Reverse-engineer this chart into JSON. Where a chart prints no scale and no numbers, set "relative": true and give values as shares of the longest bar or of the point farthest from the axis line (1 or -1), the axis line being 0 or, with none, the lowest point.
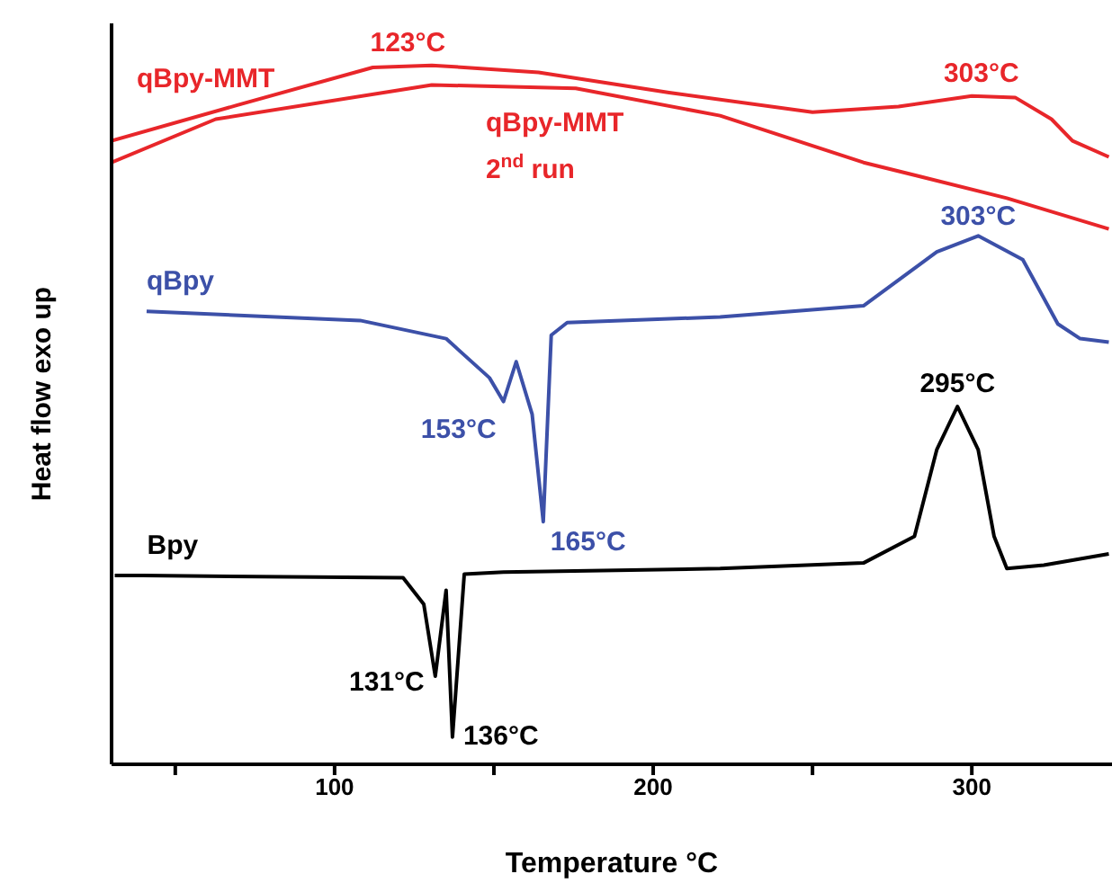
{
  "chart_data": {
    "type": "line",
    "relative": true,
    "xlabel": "Temperature °C",
    "ylabel": "Heat flow exo up",
    "xlim": [
      30,
      344
    ],
    "xticks": [
      {
        "value": 50,
        "label": null
      },
      100,
      {
        "value": 150,
        "label": null
      },
      200,
      {
        "value": 250,
        "label": null
      },
      300
    ],
    "series": [
      {
        "name": "qBpy-MMT",
        "color": "#e8262a",
        "x": [
          30,
          69.5,
          112,
          130.5,
          164,
          205,
          250,
          277,
          300,
          313.6,
          325,
          331.6,
          343
        ],
        "values": [
          0.892,
          0.943,
          0.997,
          1.0,
          0.99,
          0.961,
          0.933,
          0.941,
          0.956,
          0.954,
          0.923,
          0.892,
          0.869
        ]
      },
      {
        "name": "qBpy-MMT 2$^{nd}$ run",
        "color": "#e8262a",
        "x": [
          30,
          62.7,
          130.5,
          175.7,
          221,
          266,
          311,
          343
        ],
        "values": [
          0.861,
          0.923,
          0.972,
          0.967,
          0.928,
          0.861,
          0.81,
          0.766
        ]
      },
      {
        "name": "qBpy",
        "color": "#3c50a8",
        "x": [
          41,
          108,
          135,
          148.6,
          153,
          157,
          162,
          165.5,
          168,
          173,
          221,
          266,
          289,
          302,
          316,
          327,
          334,
          343
        ],
        "values": [
          0.648,
          0.635,
          0.609,
          0.553,
          0.519,
          0.576,
          0.501,
          0.347,
          0.614,
          0.632,
          0.64,
          0.656,
          0.733,
          0.756,
          0.722,
          0.63,
          0.609,
          0.604
        ]
      },
      {
        "name": "Bpy",
        "color": "#000000",
        "x": [
          31,
          40,
          121.5,
          128,
          131.6,
          135,
          137,
          140.7,
          153,
          221,
          266,
          282,
          289,
          295.5,
          302,
          307,
          311,
          322.6,
          343
        ],
        "values": [
          0.27,
          0.27,
          0.267,
          0.229,
          0.126,
          0.249,
          0.039,
          0.272,
          0.275,
          0.28,
          0.288,
          0.326,
          0.45,
          0.512,
          0.45,
          0.326,
          0.28,
          0.285,
          0.301
        ]
      }
    ],
    "annotations": [
      {
        "text": "123°C",
        "x": 123,
        "y": 1.0
      },
      {
        "text": "303°C",
        "x": 303,
        "y": 0.956
      },
      {
        "text": "303°C",
        "x": 302,
        "y": 0.756
      },
      {
        "text": "153°C",
        "x": 153,
        "y": 0.519
      },
      {
        "text": "165°C",
        "x": 165.5,
        "y": 0.347
      },
      {
        "text": "295°C",
        "x": 295.5,
        "y": 0.512
      },
      {
        "text": "131°C",
        "x": 131.6,
        "y": 0.126
      },
      {
        "text": "136°C",
        "x": 137,
        "y": 0.039
      }
    ]
  }
}
